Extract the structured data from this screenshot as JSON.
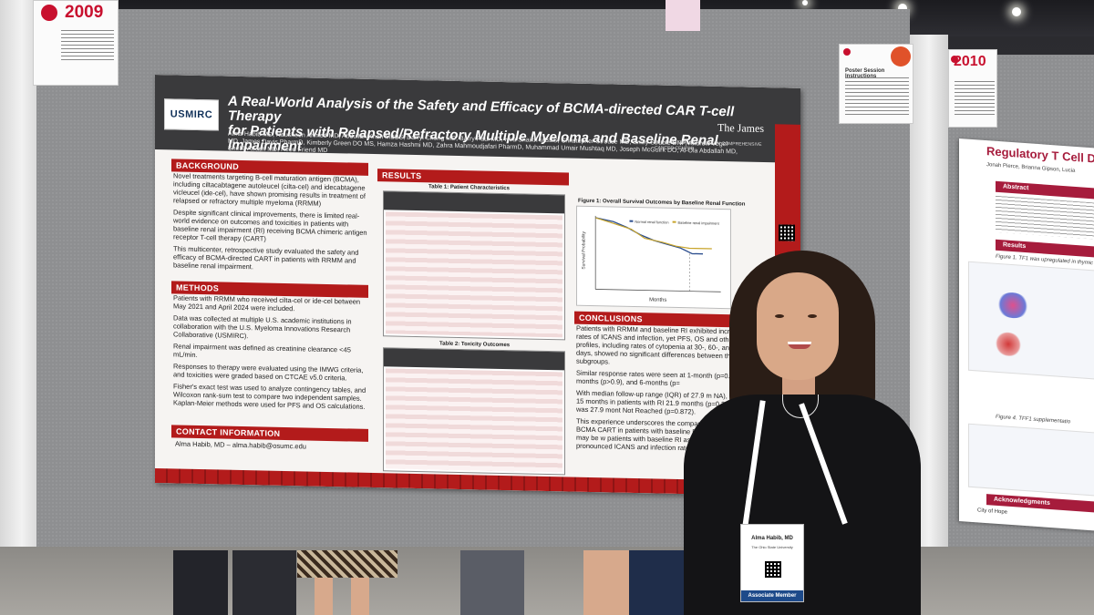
{
  "scene": {
    "left_sign_number": "2009",
    "right_sign_number": "2010",
    "poster_session_sign_title": "Poster Session Instructions"
  },
  "poster": {
    "logo": "USMIRC",
    "title_line1": "A Real-World Analysis of the Safety and Efficacy of BCMA-directed CAR T-cell Therapy",
    "title_line2": "for Patients with Relapsed/Refractory Multiple Myeloma and Baseline Renal Impairment",
    "authors": "Alma Habib MD, Nausheen Ahmed MD, Abdullah Khan MBBS, Darryl Chang MD, Barry Paul MD, Hira Shaikh MBBS, Christopher Strouse MD, Emily Struble DNP, Andrew Vegel MD, James Davis PharmD, Kimberly Green DO MS, Hamza Hashmi MD, Zahra Mahmoudjafari PharmD, Muhammad Umair Mushtaq MD, Joseph McGuirk DO, Al-Ola Abdallah MD, Shebli Atrash MD, Reed Friend MD",
    "institution_right": "The James",
    "institution_sub": "THE OHIO STATE UNIVERSITY COMPREHENSIVE CANCER CENTER",
    "sections": {
      "background": "BACKGROUND",
      "methods": "METHODS",
      "contact": "CONTACT INFORMATION",
      "results": "RESULTS",
      "conclusions": "CONCLUSIONS"
    },
    "background_bullets": [
      "Novel treatments targeting B-cell maturation antigen (BCMA), including ciltacabtagene autoleucel (cilta-cel) and idecabtagene vicleucel (ide-cel), have shown promising results in treatment of relapsed or refractory multiple myeloma (RRMM)",
      "Despite significant clinical improvements, there is limited real-world evidence on outcomes and toxicities in patients with baseline renal impairment (RI) receiving BCMA chimeric antigen receptor T-cell therapy (CART)",
      "This multicenter, retrospective study evaluated the safety and efficacy of BCMA-directed CART in patients with RRMM and baseline renal impairment."
    ],
    "methods_bullets": [
      "Patients with RRMM who received cilta-cel or ide-cel between May 2021 and April 2024 were included.",
      "Data was collected at multiple U.S. academic institutions in collaboration with the U.S. Myeloma Innovations Research Collaborative (USMIRC).",
      "Renal impairment was defined as creatinine clearance <45 mL/min.",
      "Responses to therapy were evaluated using the IMWG criteria, and toxicities were graded based on CTCAE v5.0 criteria.",
      "Fisher's exact test was used to analyze contingency tables, and Wilcoxon rank-sum test to compare two independent samples. Kaplan-Meier methods were used for PFS and OS calculations."
    ],
    "contact_line": "Alma Habib, MD – alma.habib@osumc.edu",
    "table1_title": "Table 1: Patient Characteristics",
    "table2_title": "Table 2: Toxicity Outcomes",
    "figure1_title": "Figure 1: Overall Survival Outcomes by Baseline Renal Function",
    "figure1_legend": [
      "Normal renal function",
      "Baseline renal impairment"
    ],
    "figure1_xlabel": "Months",
    "figure1_ylabel": "Survival Probability",
    "conclusion_bullets": [
      "Patients with RRMM and baseline RI exhibited increased rates of ICANS and infection, yet PFS, OS and other toxicity profiles, including rates of cytopenia at 30-, 60-, and 90-days, showed no significant differences between the subgroups.",
      "Similar response rates were seen at 1-month (p=0.088), 3-months (p>0.9), and 6-months (p=",
      "With median follow-up range (IQR) of 27.9 m NA), PFS was 15 months in patients with RI 21.9 months (p=0.319). OS was 27.9 mont Not Reached (p=0.872).",
      "This experience underscores the compar and safety of BCMA CART in patients with baseline RI. Closer monitoring may be w patients with baseline RI as they may ex pronounced ICANS and infection rates."
    ]
  },
  "right_poster": {
    "title": "Regulatory T Cell D",
    "authors": "Jonah Pierce, Brianna Gipson, Lucia",
    "sections": [
      "Abstract",
      "Results",
      "Acknowledgments"
    ],
    "fig_caption_1": "Figure 1. TF1 was upregulated in thymic Tr",
    "fig_caption_2": "Figure 4. TFF1 supplementatio",
    "sponsor": "City of Hope"
  },
  "badge": {
    "name": "Alma Habib, MD",
    "org": "The Ohio State University",
    "member_type": "Associate Member"
  }
}
